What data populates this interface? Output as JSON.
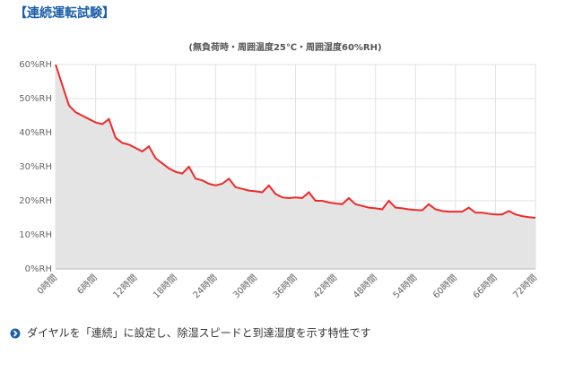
{
  "heading": "【連続運転試験】",
  "chart_data": {
    "type": "area",
    "subtitle": "(無負荷時・周囲温度25℃・周囲湿度60%RH)",
    "x": [
      0,
      1,
      2,
      3,
      4,
      5,
      6,
      7,
      8,
      9,
      10,
      11,
      12,
      13,
      14,
      15,
      16,
      17,
      18,
      19,
      20,
      21,
      22,
      23,
      24,
      25,
      26,
      27,
      28,
      29,
      30,
      31,
      32,
      33,
      34,
      35,
      36,
      37,
      38,
      39,
      40,
      41,
      42,
      43,
      44,
      45,
      46,
      47,
      48,
      49,
      50,
      51,
      52,
      53,
      54,
      55,
      56,
      57,
      58,
      59,
      60,
      61,
      62,
      63,
      64,
      65,
      66,
      67,
      68,
      69,
      70,
      71,
      72
    ],
    "values": [
      60,
      54,
      48,
      46,
      45,
      44,
      43,
      42.5,
      44,
      38.5,
      37,
      36.5,
      35.5,
      34.5,
      36,
      32.5,
      31,
      29.5,
      28.5,
      28,
      30,
      26.5,
      26,
      25,
      24.5,
      25,
      26.5,
      24,
      23.5,
      23,
      22.8,
      22.5,
      24.5,
      22,
      21,
      20.8,
      21,
      20.8,
      22.5,
      20,
      20,
      19.5,
      19.2,
      19,
      20.8,
      19,
      18.5,
      18,
      17.8,
      17.5,
      20,
      18,
      17.8,
      17.5,
      17.3,
      17.2,
      19,
      17.5,
      17,
      16.8,
      16.8,
      16.8,
      18,
      16.5,
      16.5,
      16.2,
      16,
      16,
      17,
      16,
      15.5,
      15.2,
      15
    ],
    "color": "#ee2a2a",
    "fill": "#e4e4e4",
    "grid": true,
    "xlim": [
      0,
      72
    ],
    "xticks": [
      {
        "value": 0,
        "label": "0時間"
      },
      {
        "value": 6,
        "label": "6時間"
      },
      {
        "value": 12,
        "label": "12時間"
      },
      {
        "value": 18,
        "label": "18時間"
      },
      {
        "value": 24,
        "label": "24時間"
      },
      {
        "value": 30,
        "label": "30時間"
      },
      {
        "value": 36,
        "label": "36時間"
      },
      {
        "value": 42,
        "label": "42時間"
      },
      {
        "value": 48,
        "label": "48時間"
      },
      {
        "value": 54,
        "label": "54時間"
      },
      {
        "value": 60,
        "label": "60時間"
      },
      {
        "value": 66,
        "label": "66時間"
      },
      {
        "value": 72,
        "label": "72時間"
      }
    ],
    "ylim": [
      0,
      60
    ],
    "yticks": [
      {
        "value": 0,
        "label": "0%RH"
      },
      {
        "value": 10,
        "label": "10%RH"
      },
      {
        "value": 20,
        "label": "20%RH"
      },
      {
        "value": 30,
        "label": "30%RH"
      },
      {
        "value": 40,
        "label": "40%RH"
      },
      {
        "value": 50,
        "label": "50%RH"
      },
      {
        "value": 60,
        "label": "60%RH"
      }
    ]
  },
  "caption": "ダイヤルを「連続」に設定し、除湿スピードと到達湿度を示す特性です"
}
